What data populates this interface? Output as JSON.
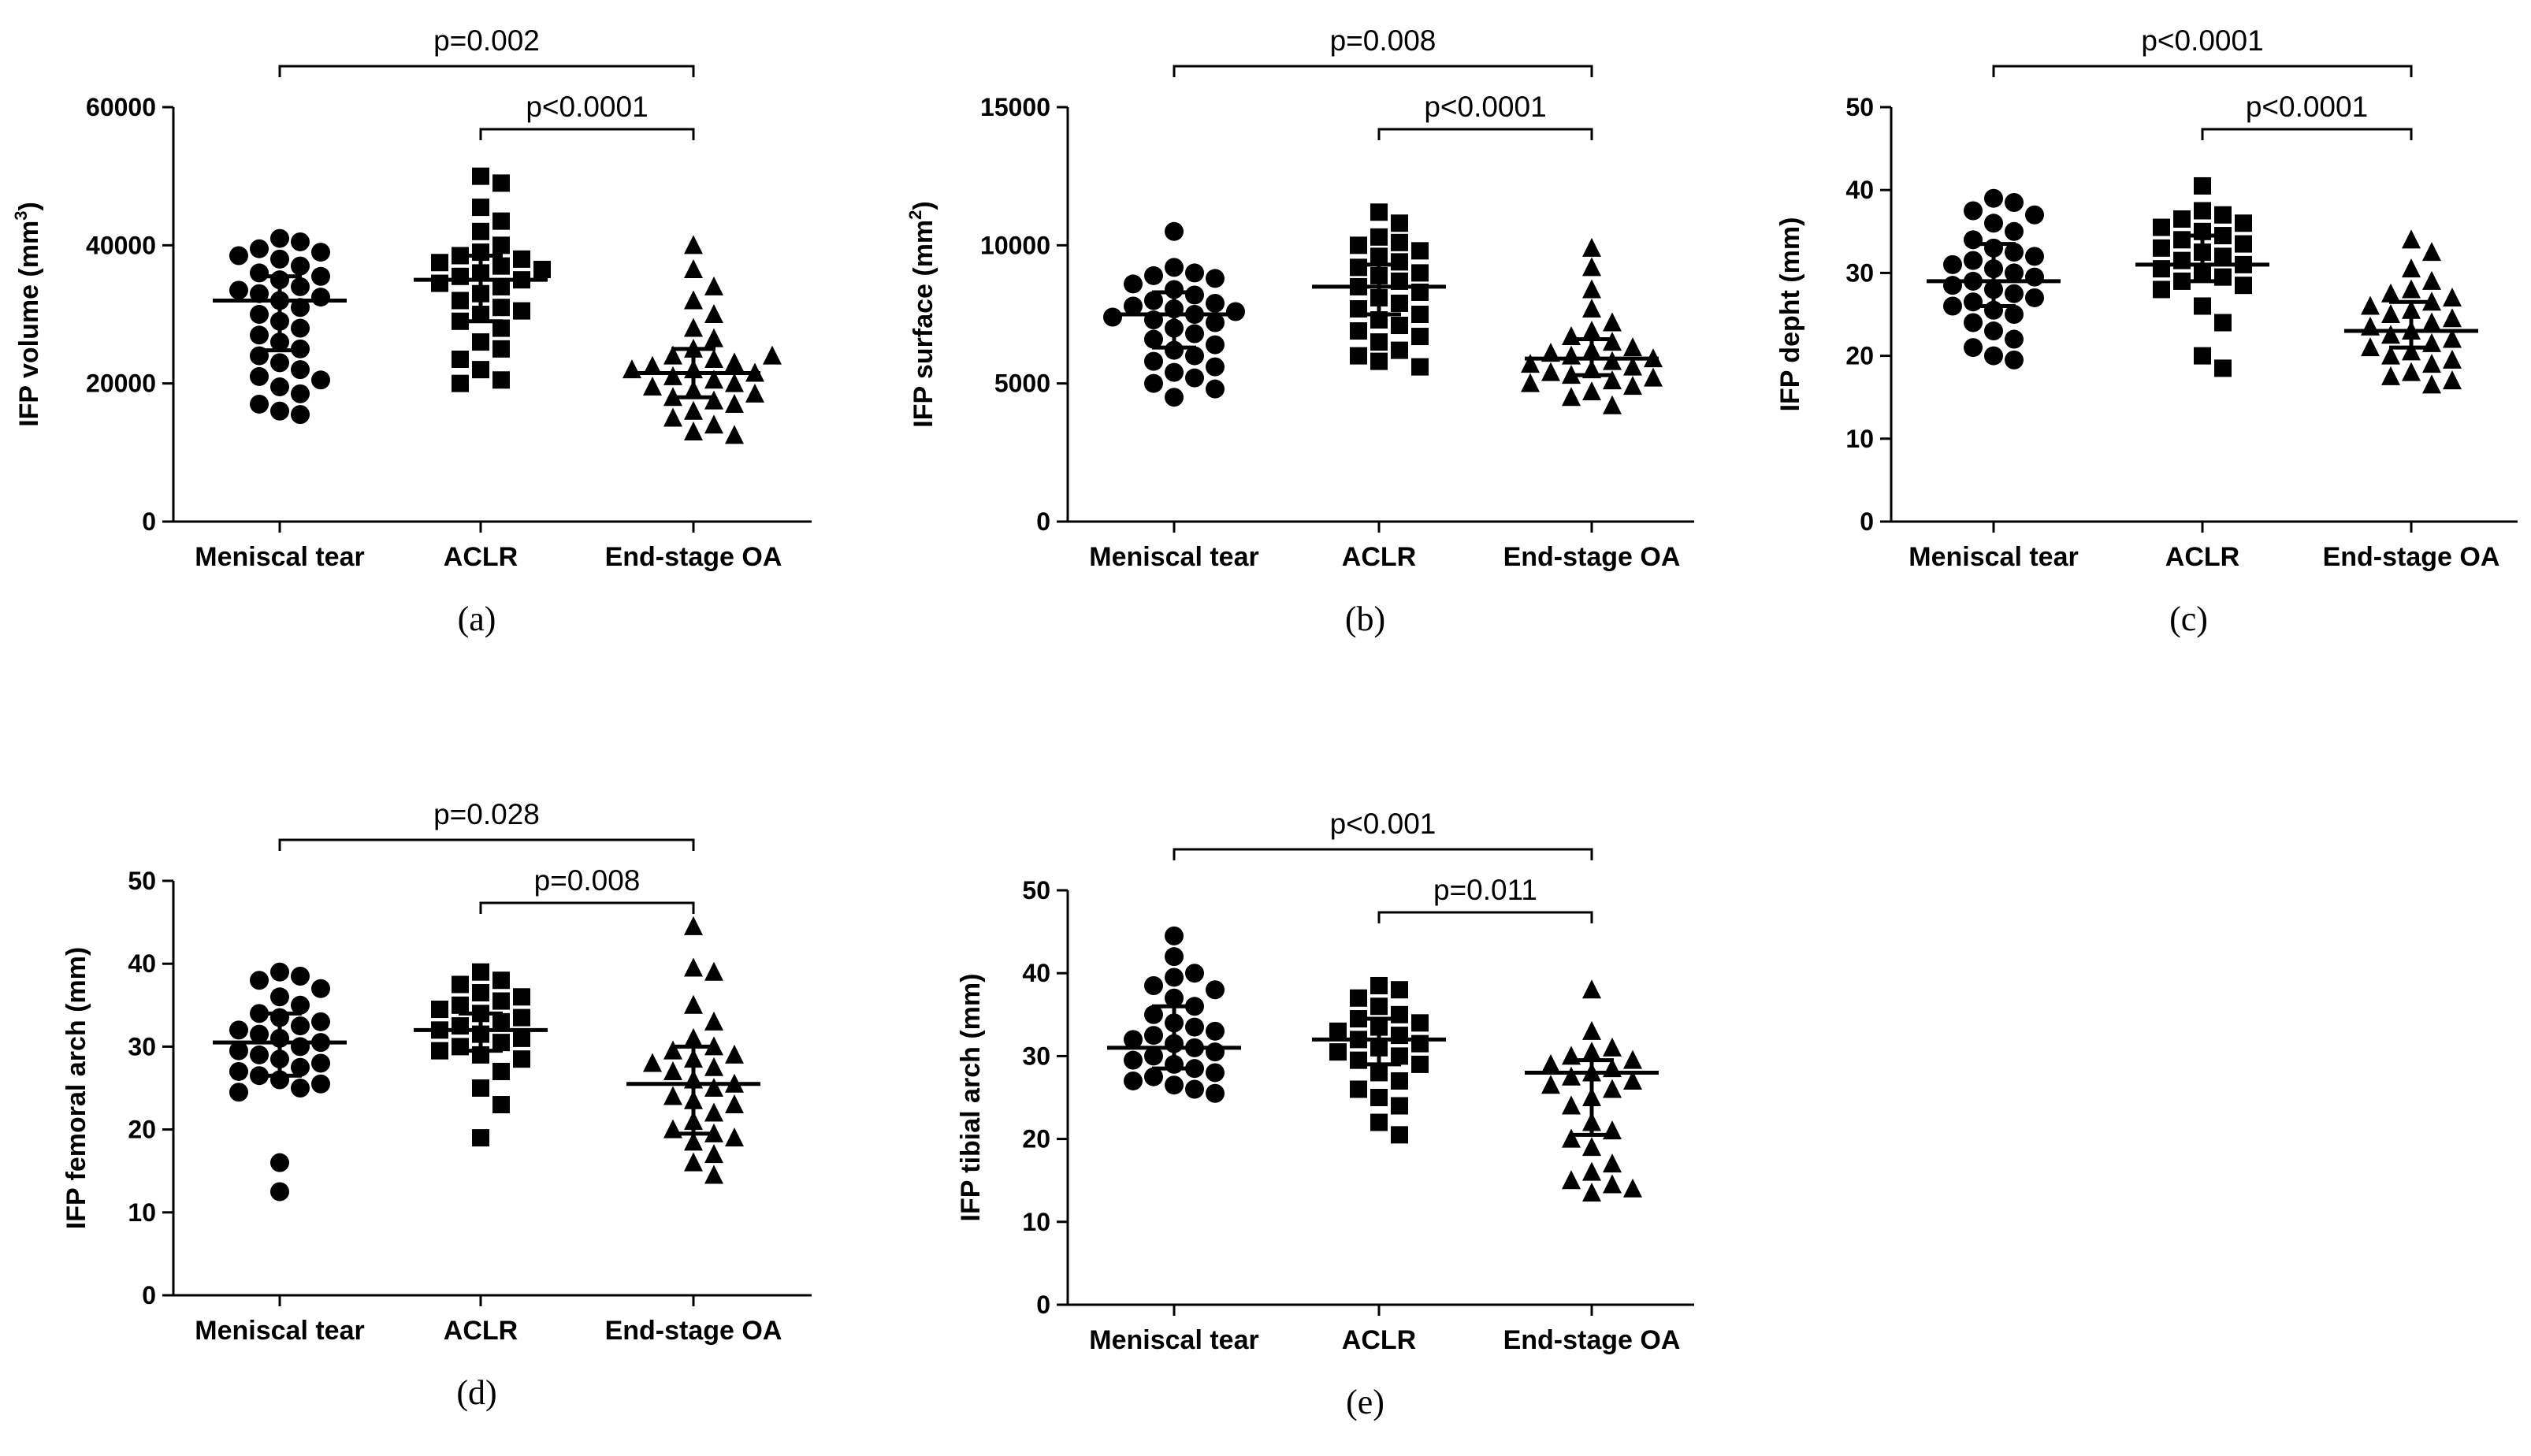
{
  "colors": {
    "ink": "#000000",
    "background": "#ffffff"
  },
  "chart_data": [
    {
      "id": "a",
      "type": "scatter",
      "panel_label": "(a)",
      "ylabel": "IFP volume (mm",
      "ylabel_sup": "3",
      "ylabel_after": ")",
      "ylim": [
        0,
        60000
      ],
      "yticks": [
        0,
        20000,
        40000,
        60000
      ],
      "categories": [
        "Meniscal tear",
        "ACLR",
        "End-stage OA"
      ],
      "markers": [
        "circle",
        "square",
        "triangle"
      ],
      "series": [
        {
          "name": "Meniscal tear",
          "mean": 32000,
          "sd_low": 24800,
          "sd_high": 35500,
          "values": [
            41000,
            40500,
            39500,
            39000,
            38500,
            38000,
            37000,
            36000,
            35500,
            35000,
            34000,
            33500,
            33000,
            32500,
            32000,
            31000,
            30000,
            29000,
            28000,
            27000,
            26000,
            25000,
            24000,
            23000,
            22000,
            21000,
            20500,
            19500,
            18500,
            17000,
            16000,
            15500
          ]
        },
        {
          "name": "ACLR",
          "mean": 35000,
          "sd_low": 29000,
          "sd_high": 38500,
          "values": [
            50000,
            49000,
            45500,
            43500,
            42000,
            40000,
            39000,
            38500,
            38000,
            37500,
            37000,
            36500,
            36000,
            35500,
            35000,
            34500,
            34000,
            33000,
            32000,
            31000,
            30000,
            29000,
            28000,
            26000,
            25000,
            23500,
            22000,
            20500,
            20000,
            30500
          ]
        },
        {
          "name": "End-stage OA",
          "mean": 21500,
          "sd_low": 18000,
          "sd_high": 25000,
          "values": [
            40000,
            36500,
            34000,
            32000,
            30000,
            28000,
            26500,
            25000,
            24000,
            23500,
            23000,
            22500,
            22000,
            21500,
            21000,
            20500,
            20000,
            19500,
            19000,
            18500,
            18000,
            17500,
            17000,
            16000,
            15000,
            14000,
            13000,
            12500,
            22000,
            24000
          ]
        }
      ],
      "comparisons": [
        {
          "from": 0,
          "to": 2,
          "label": "p=0.002"
        },
        {
          "from": 1,
          "to": 2,
          "label": "p<0.0001"
        }
      ]
    },
    {
      "id": "b",
      "type": "scatter",
      "panel_label": "(b)",
      "ylabel": "IFP surface (mm",
      "ylabel_sup": "2",
      "ylabel_after": ")",
      "ylim": [
        0,
        15000
      ],
      "yticks": [
        0,
        5000,
        10000,
        15000
      ],
      "categories": [
        "Meniscal tear",
        "ACLR",
        "End-stage OA"
      ],
      "markers": [
        "circle",
        "square",
        "triangle"
      ],
      "series": [
        {
          "name": "Meniscal tear",
          "mean": 7500,
          "sd_low": 6300,
          "sd_high": 8300,
          "values": [
            10500,
            9200,
            9000,
            8900,
            8800,
            8600,
            8400,
            8200,
            8000,
            7900,
            7800,
            7700,
            7600,
            7500,
            7400,
            7300,
            7200,
            7000,
            6800,
            6600,
            6400,
            6200,
            6000,
            5800,
            5600,
            5400,
            5200,
            5000,
            4800,
            4500
          ]
        },
        {
          "name": "ACLR",
          "mean": 8500,
          "sd_low": 7500,
          "sd_high": 9300,
          "values": [
            11200,
            10800,
            10300,
            10100,
            10000,
            9800,
            9600,
            9400,
            9200,
            9000,
            8900,
            8700,
            8500,
            8300,
            8100,
            7900,
            7700,
            7500,
            7300,
            7100,
            6900,
            6700,
            6500,
            6200,
            6000,
            5800,
            5600
          ]
        },
        {
          "name": "End-stage OA",
          "mean": 5900,
          "sd_low": 5300,
          "sd_high": 6600,
          "values": [
            9900,
            9200,
            8400,
            7700,
            7200,
            6900,
            6700,
            6500,
            6300,
            6200,
            6100,
            6000,
            5900,
            5800,
            5700,
            5600,
            5500,
            5400,
            5300,
            5200,
            5100,
            5000,
            4900,
            4700,
            4500,
            4200
          ]
        }
      ],
      "comparisons": [
        {
          "from": 0,
          "to": 2,
          "label": "p=0.008"
        },
        {
          "from": 1,
          "to": 2,
          "label": "p<0.0001"
        }
      ]
    },
    {
      "id": "c",
      "type": "scatter",
      "panel_label": "(c)",
      "ylabel": "IFP depht (mm)",
      "ylabel_sup": "",
      "ylabel_after": "",
      "ylim": [
        0,
        50
      ],
      "yticks": [
        0,
        10,
        20,
        30,
        40,
        50
      ],
      "categories": [
        "Meniscal tear",
        "ACLR",
        "End-stage OA"
      ],
      "markers": [
        "circle",
        "square",
        "triangle"
      ],
      "series": [
        {
          "name": "Meniscal tear",
          "mean": 29,
          "sd_low": 26,
          "sd_high": 33.5,
          "values": [
            39,
            38.5,
            37.5,
            37,
            36,
            35,
            34,
            33,
            32.5,
            32,
            31.5,
            31,
            30.5,
            30,
            29.5,
            29,
            28.5,
            28,
            27.5,
            27,
            26.5,
            26,
            25.5,
            25,
            24,
            23,
            22,
            21,
            20,
            19.5
          ]
        },
        {
          "name": "ACLR",
          "mean": 31,
          "sd_low": 29,
          "sd_high": 34.5,
          "values": [
            40.5,
            37.5,
            37,
            36.5,
            36,
            35.5,
            35,
            34.5,
            34,
            33.5,
            33,
            32.5,
            32,
            31.5,
            31,
            30.5,
            30,
            29.5,
            29,
            28.5,
            28,
            26,
            24,
            20,
            18.5
          ]
        },
        {
          "name": "End-stage OA",
          "mean": 23,
          "sd_low": 21,
          "sd_high": 26.5,
          "values": [
            34,
            32.5,
            30.5,
            29,
            28,
            27.5,
            27,
            26.5,
            26,
            25.5,
            25,
            24.5,
            24,
            23.5,
            23,
            22.5,
            22,
            21.5,
            21,
            20.5,
            20,
            19.5,
            19,
            18,
            17.5,
            17,
            16.5
          ]
        }
      ],
      "comparisons": [
        {
          "from": 0,
          "to": 2,
          "label": "p<0.0001"
        },
        {
          "from": 1,
          "to": 2,
          "label": "p<0.0001"
        }
      ]
    },
    {
      "id": "d",
      "type": "scatter",
      "panel_label": "(d)",
      "ylabel": "IFP femoral arch (mm)",
      "ylabel_sup": "",
      "ylabel_after": "",
      "ylim": [
        0,
        50
      ],
      "yticks": [
        0,
        10,
        20,
        30,
        40,
        50
      ],
      "categories": [
        "Meniscal tear",
        "ACLR",
        "End-stage OA"
      ],
      "markers": [
        "circle",
        "square",
        "triangle"
      ],
      "series": [
        {
          "name": "Meniscal tear",
          "mean": 30.5,
          "sd_low": 26.5,
          "sd_high": 34,
          "values": [
            39,
            38.5,
            38,
            37,
            36,
            35,
            34,
            33.5,
            33,
            32.5,
            32,
            31.5,
            31,
            30.5,
            30,
            29.5,
            29,
            28.5,
            28,
            27.5,
            27,
            26.5,
            26,
            25.5,
            25,
            24.5,
            16,
            12.5
          ]
        },
        {
          "name": "ACLR",
          "mean": 32,
          "sd_low": 29.5,
          "sd_high": 34,
          "values": [
            39,
            38,
            37.5,
            36.5,
            36,
            35.5,
            35,
            34.5,
            34,
            33.5,
            33,
            32.5,
            32,
            31.5,
            31,
            30.5,
            30,
            29.5,
            29,
            28.5,
            27,
            25,
            23,
            19
          ]
        },
        {
          "name": "End-stage OA",
          "mean": 25.5,
          "sd_low": 19.5,
          "sd_high": 30,
          "values": [
            44.5,
            39.5,
            39,
            35,
            33,
            31,
            30,
            29.5,
            29,
            28.5,
            28,
            27.5,
            27,
            26,
            25.5,
            25,
            24,
            23.5,
            23,
            22,
            21,
            20,
            19.5,
            19,
            18.5,
            17,
            16,
            14.5
          ]
        }
      ],
      "comparisons": [
        {
          "from": 0,
          "to": 2,
          "label": "p=0.028"
        },
        {
          "from": 1,
          "to": 2,
          "label": "p=0.008"
        }
      ]
    },
    {
      "id": "e",
      "type": "scatter",
      "panel_label": "(e)",
      "ylabel": "IFP tibial arch (mm)",
      "ylabel_sup": "",
      "ylabel_after": "",
      "ylim": [
        0,
        50
      ],
      "yticks": [
        0,
        10,
        20,
        30,
        40,
        50
      ],
      "categories": [
        "Meniscal tear",
        "ACLR",
        "End-stage OA"
      ],
      "markers": [
        "circle",
        "square",
        "triangle"
      ],
      "series": [
        {
          "name": "Meniscal tear",
          "mean": 31,
          "sd_low": 28.5,
          "sd_high": 36,
          "values": [
            44.5,
            42,
            40,
            39.5,
            38.5,
            38,
            37,
            36,
            35,
            34,
            33.5,
            33,
            32.5,
            32,
            31.5,
            31,
            30.5,
            30,
            29.5,
            29,
            28.5,
            28,
            27.5,
            27,
            26.5,
            26,
            25.5
          ]
        },
        {
          "name": "ACLR",
          "mean": 32,
          "sd_low": 29,
          "sd_high": 34.5,
          "values": [
            38.5,
            38,
            37,
            36,
            35,
            34.5,
            34,
            33.5,
            33,
            32.5,
            32,
            31.5,
            31,
            30.5,
            30,
            29.5,
            29,
            28,
            27,
            26,
            25,
            24,
            22,
            20.5
          ]
        },
        {
          "name": "End-stage OA",
          "mean": 28,
          "sd_low": 20.5,
          "sd_high": 29.5,
          "values": [
            38,
            33,
            31,
            30.5,
            30,
            29.5,
            29,
            28.5,
            28,
            27.5,
            27,
            26.5,
            26,
            25,
            24,
            22,
            21,
            20,
            19,
            17,
            16,
            15,
            14.5,
            14,
            13.5
          ]
        }
      ],
      "comparisons": [
        {
          "from": 0,
          "to": 2,
          "label": "p<0.001"
        },
        {
          "from": 1,
          "to": 2,
          "label": "p=0.011"
        }
      ]
    }
  ]
}
